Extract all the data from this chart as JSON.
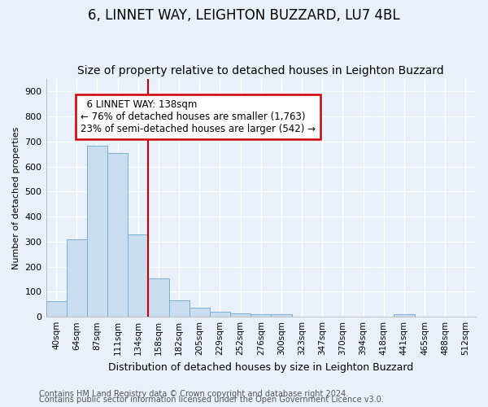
{
  "title1": "6, LINNET WAY, LEIGHTON BUZZARD, LU7 4BL",
  "title2": "Size of property relative to detached houses in Leighton Buzzard",
  "xlabel": "Distribution of detached houses by size in Leighton Buzzard",
  "ylabel": "Number of detached properties",
  "categories": [
    "40sqm",
    "64sqm",
    "87sqm",
    "111sqm",
    "134sqm",
    "158sqm",
    "182sqm",
    "205sqm",
    "229sqm",
    "252sqm",
    "276sqm",
    "300sqm",
    "323sqm",
    "347sqm",
    "370sqm",
    "394sqm",
    "418sqm",
    "441sqm",
    "465sqm",
    "488sqm",
    "512sqm"
  ],
  "values": [
    63,
    310,
    685,
    655,
    330,
    155,
    65,
    35,
    20,
    12,
    10,
    10,
    0,
    0,
    0,
    0,
    0,
    10,
    0,
    0,
    0
  ],
  "bar_color": "#c9dcf0",
  "bar_edge_color": "#7aafd4",
  "vline_x": 4.5,
  "annotation_text1": "6 LINNET WAY: 138sqm",
  "annotation_text2": "← 76% of detached houses are smaller (1,763)",
  "annotation_text3": "23% of semi-detached houses are larger (542) →",
  "annotation_box_facecolor": "#ffffff",
  "annotation_box_edgecolor": "#cc0000",
  "vline_color": "#cc0000",
  "ylim": [
    0,
    950
  ],
  "yticks": [
    0,
    100,
    200,
    300,
    400,
    500,
    600,
    700,
    800,
    900
  ],
  "footer1": "Contains HM Land Registry data © Crown copyright and database right 2024.",
  "footer2": "Contains public sector information licensed under the Open Government Licence v3.0.",
  "bg_color": "#eaf0fa",
  "grid_color": "#ffffff",
  "title1_fontsize": 12,
  "title2_fontsize": 10,
  "ylabel_fontsize": 8,
  "xlabel_fontsize": 9,
  "tick_fontsize": 8,
  "xtick_fontsize": 7.5,
  "annot_fontsize": 8.5,
  "footer_fontsize": 7
}
